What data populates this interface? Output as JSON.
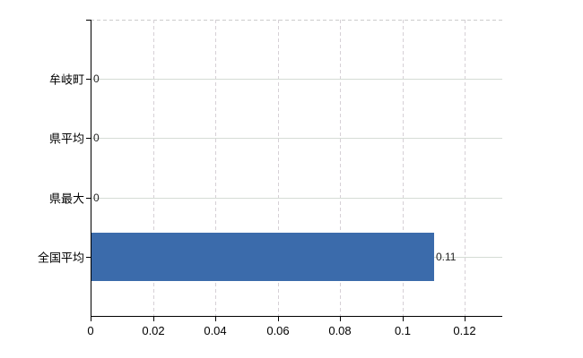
{
  "chart_data": {
    "type": "bar",
    "orientation": "horizontal",
    "title": "",
    "categories": [
      "牟岐町",
      "県平均",
      "県最大",
      "全国平均"
    ],
    "values": [
      0,
      0,
      0,
      0.11
    ],
    "value_labels": [
      "0",
      "0",
      "0",
      "0.11"
    ],
    "xlim": [
      0,
      0.132
    ],
    "xticks": [
      0,
      0.02,
      0.04,
      0.06,
      0.08,
      0.1,
      0.12
    ],
    "xtick_labels": [
      "0",
      "0.02",
      "0.04",
      "0.06",
      "0.08",
      "0.1",
      "0.12"
    ],
    "grid": true,
    "legend": "none",
    "colors": {
      "bar": "#3b6bab",
      "axis": "#000000",
      "h_gridline": "#d5dcd5",
      "v_gridline": "#d6d0d6",
      "top_border": "#cccccc",
      "label_text": "#000000",
      "value_text": "#222222",
      "background": "#ffffff"
    }
  }
}
